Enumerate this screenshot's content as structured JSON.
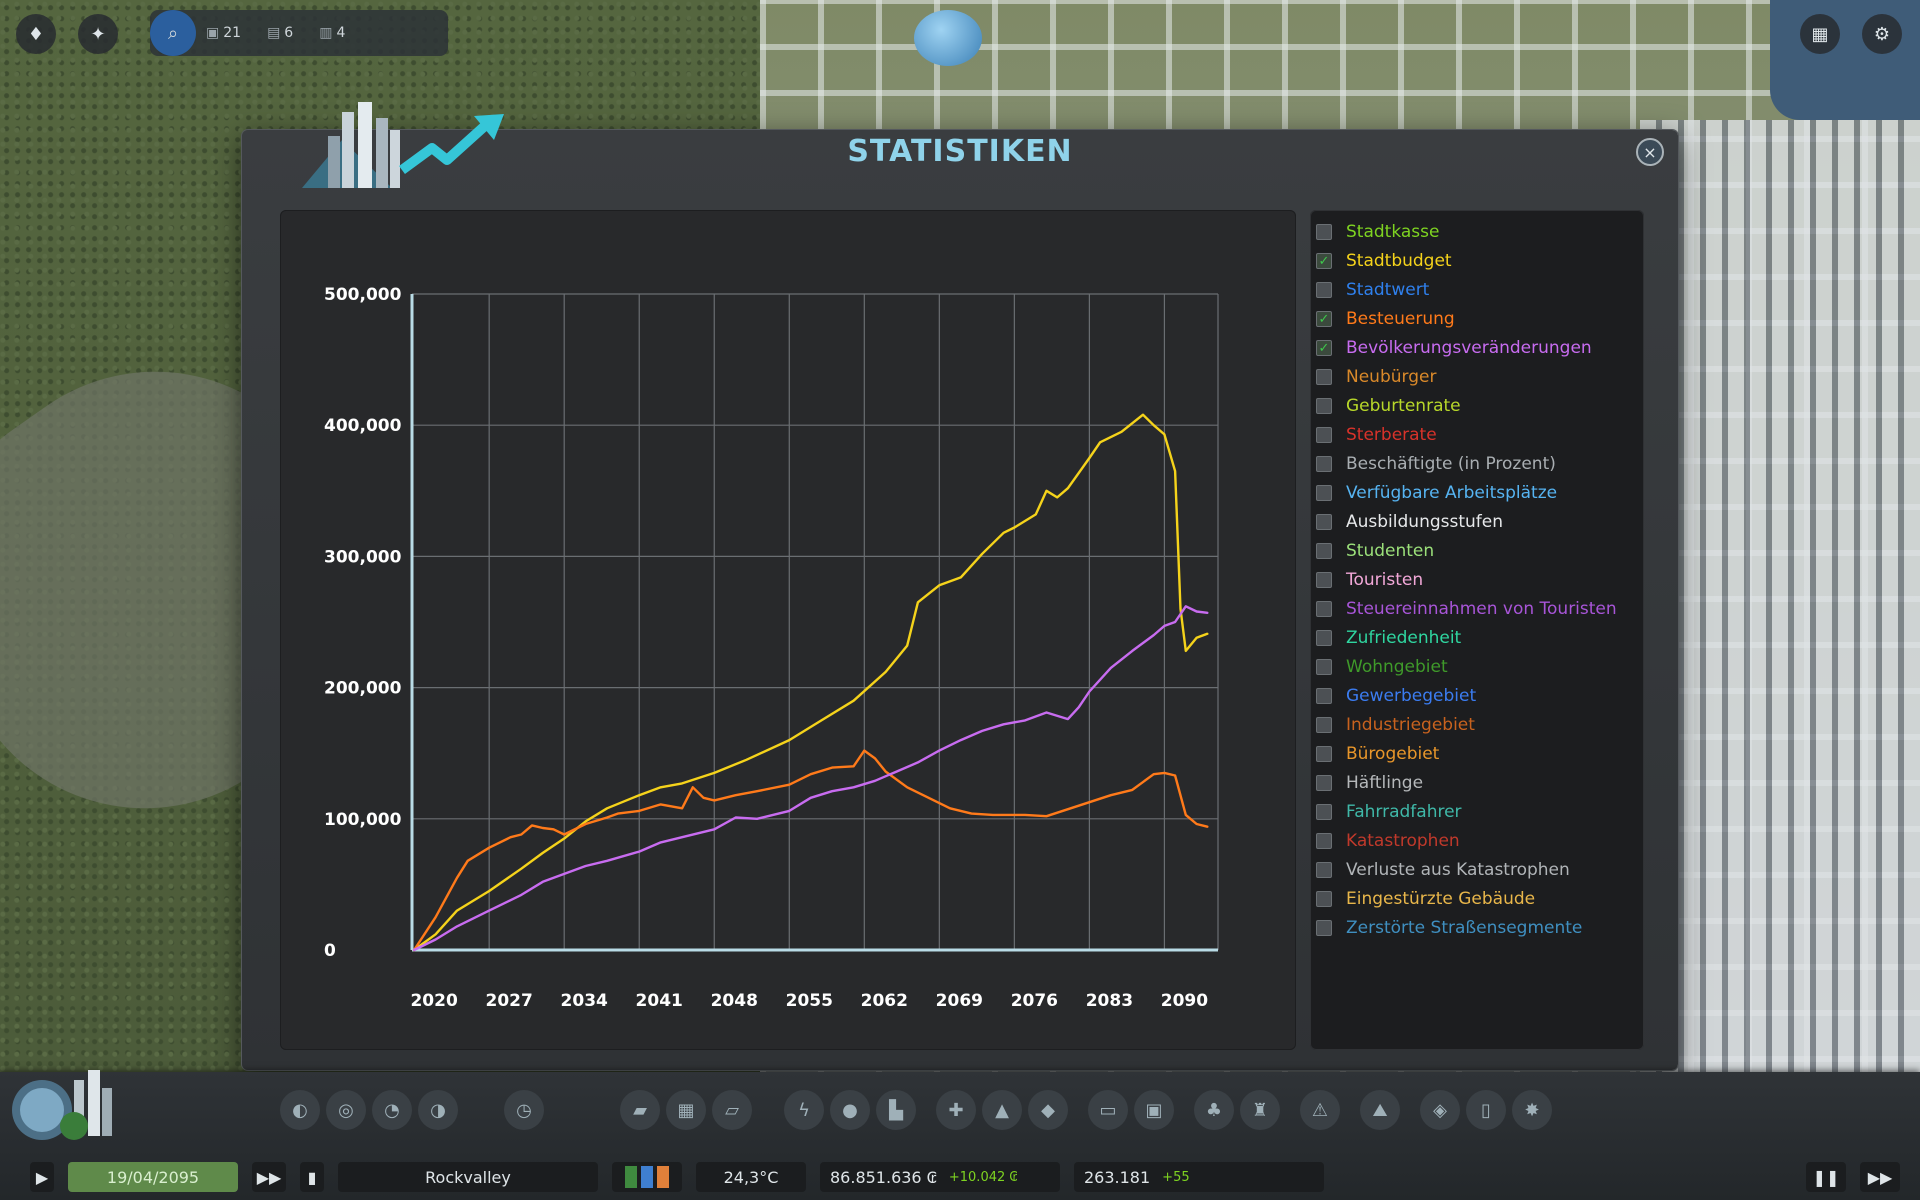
{
  "hud": {
    "counters": [
      {
        "icon": "problems-icon",
        "value": "21"
      },
      {
        "icon": "notes-icon",
        "value": "6"
      },
      {
        "icon": "info-icon",
        "value": "4"
      }
    ]
  },
  "dialog": {
    "title": "STATISTIKEN",
    "close_label": "×"
  },
  "legend": [
    {
      "label": "Stadtkasse",
      "color": "#7ed321",
      "checked": false
    },
    {
      "label": "Stadtbudget",
      "color": "#f5d31b",
      "checked": true
    },
    {
      "label": "Stadtwert",
      "color": "#2f80ed",
      "checked": false
    },
    {
      "label": "Besteuerung",
      "color": "#ff7a1a",
      "checked": true
    },
    {
      "label": "Bevölkerungsveränderungen",
      "color": "#c86cf0",
      "checked": true
    },
    {
      "label": "Neubürger",
      "color": "#d9892a",
      "checked": false
    },
    {
      "label": "Geburtenrate",
      "color": "#b8d82a",
      "checked": false
    },
    {
      "label": "Sterberate",
      "color": "#d8322a",
      "checked": false
    },
    {
      "label": "Beschäftigte (in Prozent)",
      "color": "#a9aeb2",
      "checked": false
    },
    {
      "label": "Verfügbare Arbeitsplätze",
      "color": "#56b4f2",
      "checked": false
    },
    {
      "label": "Ausbildungsstufen",
      "color": "#e6e8ea",
      "checked": false
    },
    {
      "label": "Studenten",
      "color": "#9be07a",
      "checked": false
    },
    {
      "label": "Touristen",
      "color": "#f2a8d8",
      "checked": false
    },
    {
      "label": "Steuereinnahmen von Touristen",
      "color": "#a855d8",
      "checked": false
    },
    {
      "label": "Zufriedenheit",
      "color": "#2fd6a0",
      "checked": false
    },
    {
      "label": "Wohngebiet",
      "color": "#3f9a2a",
      "checked": false
    },
    {
      "label": "Gewerbegebiet",
      "color": "#3b7cf0",
      "checked": false
    },
    {
      "label": "Industriegebiet",
      "color": "#c8621e",
      "checked": false
    },
    {
      "label": "Bürogebiet",
      "color": "#e8962a",
      "checked": false
    },
    {
      "label": "Häftlinge",
      "color": "#b5b8ba",
      "checked": false
    },
    {
      "label": "Fahrradfahrer",
      "color": "#3fb8a8",
      "checked": false
    },
    {
      "label": "Katastrophen",
      "color": "#c0392b",
      "checked": false
    },
    {
      "label": "Verluste aus Katastrophen",
      "color": "#b0b4b7",
      "checked": false
    },
    {
      "label": "Eingestürzte Gebäude",
      "color": "#e8b64a",
      "checked": false
    },
    {
      "label": "Zerstörte Straßensegmente",
      "color": "#3f8fc0",
      "checked": false
    }
  ],
  "chart_data": {
    "type": "line",
    "x_ticks": [
      "2020",
      "2027",
      "2034",
      "2041",
      "2048",
      "2055",
      "2062",
      "2069",
      "2076",
      "2083",
      "2090"
    ],
    "y_ticks": [
      "0",
      "100,000",
      "200,000",
      "300,000",
      "400,000",
      "500,000"
    ],
    "ylim": [
      0,
      500000
    ],
    "xlim": [
      2019.8,
      2095
    ],
    "grid": true,
    "series": [
      {
        "name": "Stadtbudget",
        "color": "#f5d31b",
        "x": [
          2020,
          2022,
          2024,
          2027,
          2030,
          2032,
          2034,
          2036,
          2038,
          2041,
          2043,
          2045,
          2048,
          2051,
          2055,
          2058,
          2061,
          2064,
          2066,
          2067,
          2069,
          2071,
          2073,
          2075,
          2076,
          2078,
          2079,
          2080,
          2081,
          2083,
          2084,
          2086,
          2088,
          2089,
          2090,
          2091,
          2091.5,
          2092,
          2093,
          2094
        ],
        "y": [
          0,
          12000,
          30000,
          45000,
          62000,
          74000,
          85000,
          98000,
          108000,
          118000,
          124000,
          127000,
          135000,
          145000,
          160000,
          175000,
          190000,
          212000,
          232000,
          265000,
          278000,
          284000,
          302000,
          318000,
          322000,
          332000,
          350000,
          345000,
          352000,
          375000,
          387000,
          395000,
          408000,
          400000,
          393000,
          365000,
          260000,
          228000,
          238000,
          241000
        ]
      },
      {
        "name": "Besteuerung",
        "color": "#ff7a1a",
        "x": [
          2020,
          2022,
          2024,
          2025,
          2027,
          2029,
          2030,
          2031,
          2032,
          2033,
          2034,
          2036,
          2038,
          2039,
          2041,
          2043,
          2045,
          2046,
          2047,
          2048,
          2050,
          2052,
          2055,
          2057,
          2059,
          2061,
          2062,
          2063,
          2064,
          2066,
          2068,
          2070,
          2072,
          2074,
          2077,
          2079,
          2082,
          2085,
          2087,
          2089,
          2090,
          2091,
          2092,
          2093,
          2094
        ],
        "y": [
          0,
          25000,
          55000,
          68000,
          78000,
          86000,
          88000,
          95000,
          93000,
          92000,
          88000,
          96000,
          101000,
          104000,
          106000,
          111000,
          108000,
          124000,
          116000,
          114000,
          118000,
          121000,
          126000,
          134000,
          139000,
          140000,
          152000,
          146000,
          136000,
          124000,
          116000,
          108000,
          104000,
          103000,
          103000,
          102000,
          110000,
          118000,
          122000,
          134000,
          135000,
          133000,
          103000,
          96000,
          94000
        ]
      },
      {
        "name": "Bevölkerungsveränderungen",
        "color": "#c86cf0",
        "x": [
          2020,
          2022,
          2024,
          2027,
          2030,
          2032,
          2034,
          2036,
          2038,
          2041,
          2043,
          2045,
          2048,
          2050,
          2052,
          2055,
          2057,
          2059,
          2061,
          2063,
          2065,
          2067,
          2069,
          2071,
          2073,
          2075,
          2077,
          2079,
          2081,
          2082,
          2083,
          2085,
          2087,
          2089,
          2090,
          2091,
          2092,
          2093,
          2094
        ],
        "y": [
          0,
          8000,
          18000,
          30000,
          42000,
          52000,
          58000,
          64000,
          68000,
          75000,
          82000,
          86000,
          92000,
          101000,
          100000,
          106000,
          116000,
          121000,
          124000,
          129000,
          136000,
          143000,
          152000,
          160000,
          167000,
          172000,
          175000,
          181000,
          176000,
          185000,
          197000,
          215000,
          228000,
          240000,
          247000,
          250000,
          262000,
          258000,
          257000
        ]
      }
    ]
  },
  "bottombar": {
    "date": "19/04/2095",
    "city_name": "Rockvalley",
    "temperature": "24,3°C",
    "money": "86.851.636 ₢",
    "money_delta": "+10.042 ₢",
    "population": "263.181",
    "population_delta": "+55"
  }
}
